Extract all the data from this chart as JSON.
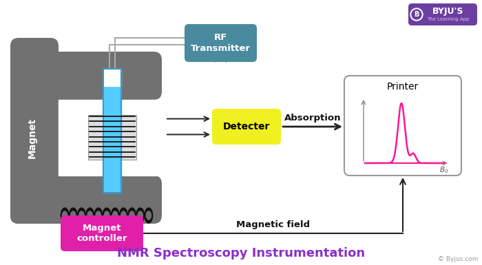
{
  "bg_color": "#ffffff",
  "title": "NMR Spectroscopy Instrumentation",
  "title_color": "#8b2fc9",
  "title_fontsize": 13,
  "magnet_color": "#717171",
  "magnet_label": "Magnet",
  "magnet_label_color": "#ffffff",
  "rf_box_color": "#4a8a9e",
  "rf_label": "RF\nTransmitter",
  "rf_label_color": "#ffffff",
  "detector_box_color": "#f0f020",
  "detector_label": "Detecter",
  "detector_label_color": "#000000",
  "controller_box_color": "#e020a8",
  "controller_label": "Magnet\ncontroller",
  "controller_label_color": "#ffffff",
  "printer_box_color": "#ffffff",
  "printer_label": "Printer",
  "printer_label_color": "#000000",
  "printer_border_color": "#999999",
  "absorption_label": "Absorption",
  "magnetic_field_label": "Magnetic field",
  "tube_color": "#55ccff",
  "tube_top_color": "#ffffff",
  "tube_border_color": "#3399cc",
  "coil_color": "#111111",
  "peak_color": "#ff1493",
  "arrow_color": "#222222",
  "wire_color": "#aaaaaa",
  "byju_bg": "#6b3fa0",
  "byju_text_color": "#ffffff",
  "copyright_color": "#999999"
}
